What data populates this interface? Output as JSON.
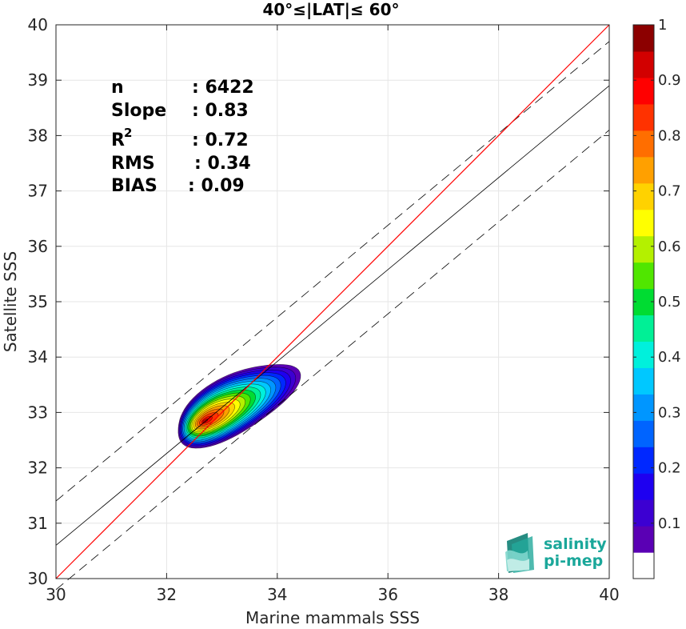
{
  "chart_data": {
    "type": "contour-scatter",
    "title": "40°≤|LAT|≤ 60°",
    "xlabel": "Marine mammals SSS",
    "ylabel": "Satellite SSS",
    "xlim": [
      30,
      40
    ],
    "ylim": [
      30,
      40
    ],
    "xticks": [
      "30",
      "32",
      "34",
      "36",
      "38",
      "40"
    ],
    "yticks": [
      "30",
      "31",
      "32",
      "33",
      "34",
      "35",
      "36",
      "37",
      "38",
      "39",
      "40"
    ],
    "grid": true,
    "stats": [
      {
        "label": "n",
        "sup": "",
        "value": ": 6422"
      },
      {
        "label": "Slope",
        "sup": "",
        "value": ": 0.83"
      },
      {
        "label": "R",
        "sup": "2",
        "value": ": 0.72"
      },
      {
        "label": "RMS",
        "sup": "",
        "value": ": 0.34"
      },
      {
        "label": "BIAS",
        "sup": "",
        "value": ": 0.09"
      }
    ],
    "lines": {
      "identity": {
        "x": [
          30,
          40
        ],
        "y": [
          30,
          40
        ],
        "color": "#ff0000"
      },
      "fit": {
        "x": [
          30,
          40
        ],
        "y": [
          30.6,
          38.9
        ],
        "color": "#000000"
      },
      "fit_upper": {
        "x": [
          30,
          40
        ],
        "y": [
          31.4,
          39.7
        ],
        "dash": true
      },
      "fit_lower": {
        "x": [
          30,
          40
        ],
        "y": [
          29.8,
          38.1
        ],
        "dash": true
      }
    },
    "density": {
      "center": [
        32.7,
        32.85
      ],
      "levels": [
        0.05,
        0.1,
        0.15,
        0.2,
        0.25,
        0.3,
        0.35,
        0.4,
        0.45,
        0.5,
        0.55,
        0.6,
        0.65,
        0.7,
        0.75,
        0.8,
        0.85,
        0.9,
        0.95
      ]
    },
    "colorbar": {
      "ticks": [
        "0.1",
        "0.2",
        "0.3",
        "0.4",
        "0.5",
        "0.6",
        "0.7",
        "0.8",
        "0.9",
        "1"
      ],
      "range": [
        0,
        1
      ],
      "colors": [
        "#ffffff",
        "#5a00b4",
        "#3c00d2",
        "#1e00f0",
        "#0028ff",
        "#0064ff",
        "#0096ff",
        "#00c8ff",
        "#00f0dc",
        "#00f096",
        "#00dc32",
        "#50e600",
        "#b4f000",
        "#ffff00",
        "#ffd200",
        "#ffa000",
        "#ff6e00",
        "#ff3200",
        "#ff0000",
        "#d20000",
        "#8c0000"
      ]
    },
    "logo": {
      "line1": "salinity",
      "line2": "pi-mep",
      "color": "#1aa79a"
    }
  }
}
